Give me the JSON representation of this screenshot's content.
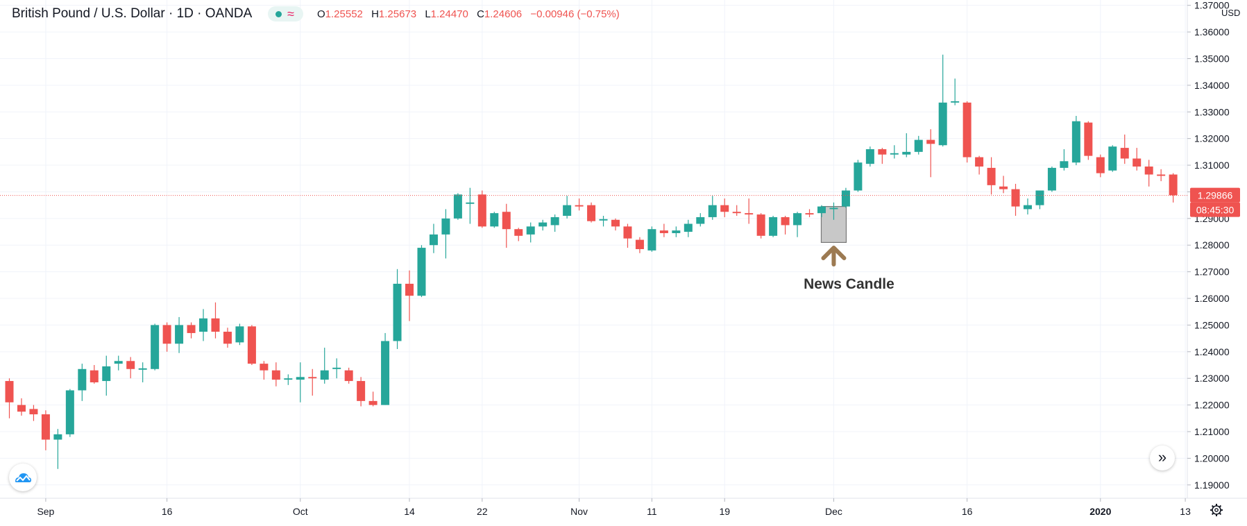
{
  "header": {
    "title": "British Pound / U.S. Dollar · 1D · OANDA",
    "ohlc": [
      {
        "label": "O",
        "value": "1.25552"
      },
      {
        "label": "H",
        "value": "1.25673"
      },
      {
        "label": "L",
        "value": "1.24470"
      },
      {
        "label": "C",
        "value": "1.24606"
      },
      {
        "label": "",
        "value": "−0.00946 (−0.75%)"
      }
    ]
  },
  "price_axis": {
    "currency": "USD",
    "last_price": "1.29866",
    "countdown": "08:45:30"
  },
  "annotation": {
    "label": "News Candle"
  },
  "colors": {
    "up": "#26a69a",
    "down": "#ef5350",
    "price_tag": "#ef5350",
    "annotation_arrow": "#9c7a52",
    "annotation_box": "#c8c8c8"
  },
  "chart_data": {
    "type": "candlestick",
    "title": "British Pound / U.S. Dollar · 1D · OANDA",
    "ylim": [
      1.185,
      1.372
    ],
    "grid": true,
    "y_ticks": [
      "1.19000",
      "1.20000",
      "1.21000",
      "1.22000",
      "1.23000",
      "1.24000",
      "1.25000",
      "1.26000",
      "1.27000",
      "1.28000",
      "1.29000",
      "1.30000",
      "1.31000",
      "1.32000",
      "1.33000",
      "1.34000",
      "1.35000",
      "1.36000",
      "1.37000"
    ],
    "x_ticks": [
      {
        "label": "Sep",
        "index": 3
      },
      {
        "label": "16",
        "index": 13
      },
      {
        "label": "Oct",
        "index": 24
      },
      {
        "label": "14",
        "index": 33
      },
      {
        "label": "22",
        "index": 39
      },
      {
        "label": "Nov",
        "index": 47
      },
      {
        "label": "11",
        "index": 53
      },
      {
        "label": "19",
        "index": 59
      },
      {
        "label": "Dec",
        "index": 68
      },
      {
        "label": "16",
        "index": 79
      },
      {
        "label": "2020",
        "index": 90
      },
      {
        "label": "13",
        "index": 97
      }
    ],
    "news_candle_index": 68,
    "candles": [
      [
        1.229,
        1.23,
        1.215,
        1.221
      ],
      [
        1.22,
        1.2225,
        1.216,
        1.2175
      ],
      [
        1.2185,
        1.22,
        1.214,
        1.2165
      ],
      [
        1.2165,
        1.218,
        1.203,
        1.207
      ],
      [
        1.207,
        1.211,
        1.196,
        1.209
      ],
      [
        1.209,
        1.226,
        1.208,
        1.2255
      ],
      [
        1.2255,
        1.2355,
        1.2215,
        1.2335
      ],
      [
        1.233,
        1.235,
        1.228,
        1.2285
      ],
      [
        1.229,
        1.2385,
        1.2235,
        1.2345
      ],
      [
        1.2355,
        1.2385,
        1.233,
        1.2365
      ],
      [
        1.2365,
        1.238,
        1.23,
        1.2335
      ],
      [
        1.2335,
        1.236,
        1.2285,
        1.2335
      ],
      [
        1.2335,
        1.2505,
        1.233,
        1.25
      ],
      [
        1.25,
        1.251,
        1.24,
        1.243
      ],
      [
        1.243,
        1.253,
        1.2395,
        1.25
      ],
      [
        1.25,
        1.251,
        1.245,
        1.247
      ],
      [
        1.2475,
        1.256,
        1.244,
        1.2525
      ],
      [
        1.2525,
        1.2585,
        1.245,
        1.2475
      ],
      [
        1.2475,
        1.249,
        1.2415,
        1.243
      ],
      [
        1.2435,
        1.2505,
        1.2425,
        1.2495
      ],
      [
        1.2495,
        1.25,
        1.235,
        1.2355
      ],
      [
        1.2355,
        1.2365,
        1.2295,
        1.233
      ],
      [
        1.233,
        1.236,
        1.227,
        1.2295
      ],
      [
        1.2295,
        1.2315,
        1.2275,
        1.23
      ],
      [
        1.2295,
        1.236,
        1.221,
        1.2305
      ],
      [
        1.2305,
        1.2335,
        1.2235,
        1.23
      ],
      [
        1.2295,
        1.2415,
        1.228,
        1.233
      ],
      [
        1.2335,
        1.2375,
        1.23,
        1.234
      ],
      [
        1.233,
        1.234,
        1.228,
        1.229
      ],
      [
        1.229,
        1.2305,
        1.2195,
        1.2215
      ],
      [
        1.2215,
        1.225,
        1.2195,
        1.22
      ],
      [
        1.22,
        1.247,
        1.22,
        1.244
      ],
      [
        1.244,
        1.271,
        1.241,
        1.2655
      ],
      [
        1.2655,
        1.2705,
        1.2515,
        1.261
      ],
      [
        1.261,
        1.28,
        1.2605,
        1.279
      ],
      [
        1.28,
        1.288,
        1.277,
        1.284
      ],
      [
        1.284,
        1.2935,
        1.275,
        1.29
      ],
      [
        1.29,
        1.2995,
        1.2895,
        1.299
      ],
      [
        1.2955,
        1.3015,
        1.288,
        1.296
      ],
      [
        1.299,
        1.3005,
        1.2865,
        1.287
      ],
      [
        1.287,
        1.2925,
        1.2865,
        1.292
      ],
      [
        1.2925,
        1.2955,
        1.279,
        1.286
      ],
      [
        1.286,
        1.2865,
        1.2815,
        1.2835
      ],
      [
        1.284,
        1.2885,
        1.281,
        1.287
      ],
      [
        1.287,
        1.2895,
        1.2855,
        1.2885
      ],
      [
        1.2875,
        1.2915,
        1.285,
        1.2905
      ],
      [
        1.291,
        1.2985,
        1.29,
        1.295
      ],
      [
        1.295,
        1.2975,
        1.293,
        1.2945
      ],
      [
        1.295,
        1.296,
        1.2885,
        1.289
      ],
      [
        1.2895,
        1.291,
        1.287,
        1.2895
      ],
      [
        1.2895,
        1.29,
        1.2855,
        1.287
      ],
      [
        1.287,
        1.288,
        1.279,
        1.2825
      ],
      [
        1.282,
        1.283,
        1.277,
        1.2785
      ],
      [
        1.278,
        1.287,
        1.2775,
        1.286
      ],
      [
        1.2855,
        1.288,
        1.283,
        1.2845
      ],
      [
        1.2845,
        1.287,
        1.283,
        1.2855
      ],
      [
        1.285,
        1.2895,
        1.283,
        1.288
      ],
      [
        1.288,
        1.292,
        1.287,
        1.2905
      ],
      [
        1.2905,
        1.2985,
        1.2895,
        1.295
      ],
      [
        1.295,
        1.2975,
        1.2905,
        1.2925
      ],
      [
        1.2925,
        1.295,
        1.291,
        1.292
      ],
      [
        1.292,
        1.2975,
        1.288,
        1.2915
      ],
      [
        1.2915,
        1.292,
        1.2825,
        1.2835
      ],
      [
        1.2835,
        1.291,
        1.283,
        1.2905
      ],
      [
        1.2905,
        1.291,
        1.284,
        1.2875
      ],
      [
        1.2875,
        1.2925,
        1.283,
        1.292
      ],
      [
        1.292,
        1.2935,
        1.2905,
        1.2915
      ],
      [
        1.292,
        1.295,
        1.2905,
        1.2945
      ],
      [
        1.2935,
        1.296,
        1.2895,
        1.294
      ],
      [
        1.2945,
        1.3015,
        1.294,
        1.3005
      ],
      [
        1.3005,
        1.312,
        1.3,
        1.311
      ],
      [
        1.3105,
        1.317,
        1.3095,
        1.316
      ],
      [
        1.316,
        1.3165,
        1.3105,
        1.314
      ],
      [
        1.314,
        1.3175,
        1.3125,
        1.3145
      ],
      [
        1.314,
        1.322,
        1.313,
        1.315
      ],
      [
        1.315,
        1.321,
        1.314,
        1.3195
      ],
      [
        1.3195,
        1.3235,
        1.3055,
        1.318
      ],
      [
        1.3175,
        1.3515,
        1.317,
        1.3335
      ],
      [
        1.3335,
        1.3425,
        1.3325,
        1.334
      ],
      [
        1.3335,
        1.334,
        1.311,
        1.313
      ],
      [
        1.313,
        1.3135,
        1.3065,
        1.3095
      ],
      [
        1.309,
        1.313,
        1.299,
        1.3025
      ],
      [
        1.302,
        1.306,
        1.2995,
        1.301
      ],
      [
        1.301,
        1.303,
        1.291,
        1.2945
      ],
      [
        1.2935,
        1.2975,
        1.2915,
        1.295
      ],
      [
        1.295,
        1.3,
        1.2935,
        1.3005
      ],
      [
        1.3005,
        1.3095,
        1.3,
        1.309
      ],
      [
        1.309,
        1.316,
        1.308,
        1.3115
      ],
      [
        1.311,
        1.3285,
        1.31,
        1.3265
      ],
      [
        1.326,
        1.3265,
        1.312,
        1.3135
      ],
      [
        1.313,
        1.314,
        1.3055,
        1.307
      ],
      [
        1.308,
        1.3175,
        1.3075,
        1.317
      ],
      [
        1.3165,
        1.3215,
        1.3105,
        1.3125
      ],
      [
        1.3125,
        1.3165,
        1.308,
        1.3095
      ],
      [
        1.3095,
        1.312,
        1.302,
        1.3065
      ],
      [
        1.3065,
        1.3085,
        1.304,
        1.306
      ],
      [
        1.3065,
        1.307,
        1.296,
        1.2987
      ]
    ]
  }
}
